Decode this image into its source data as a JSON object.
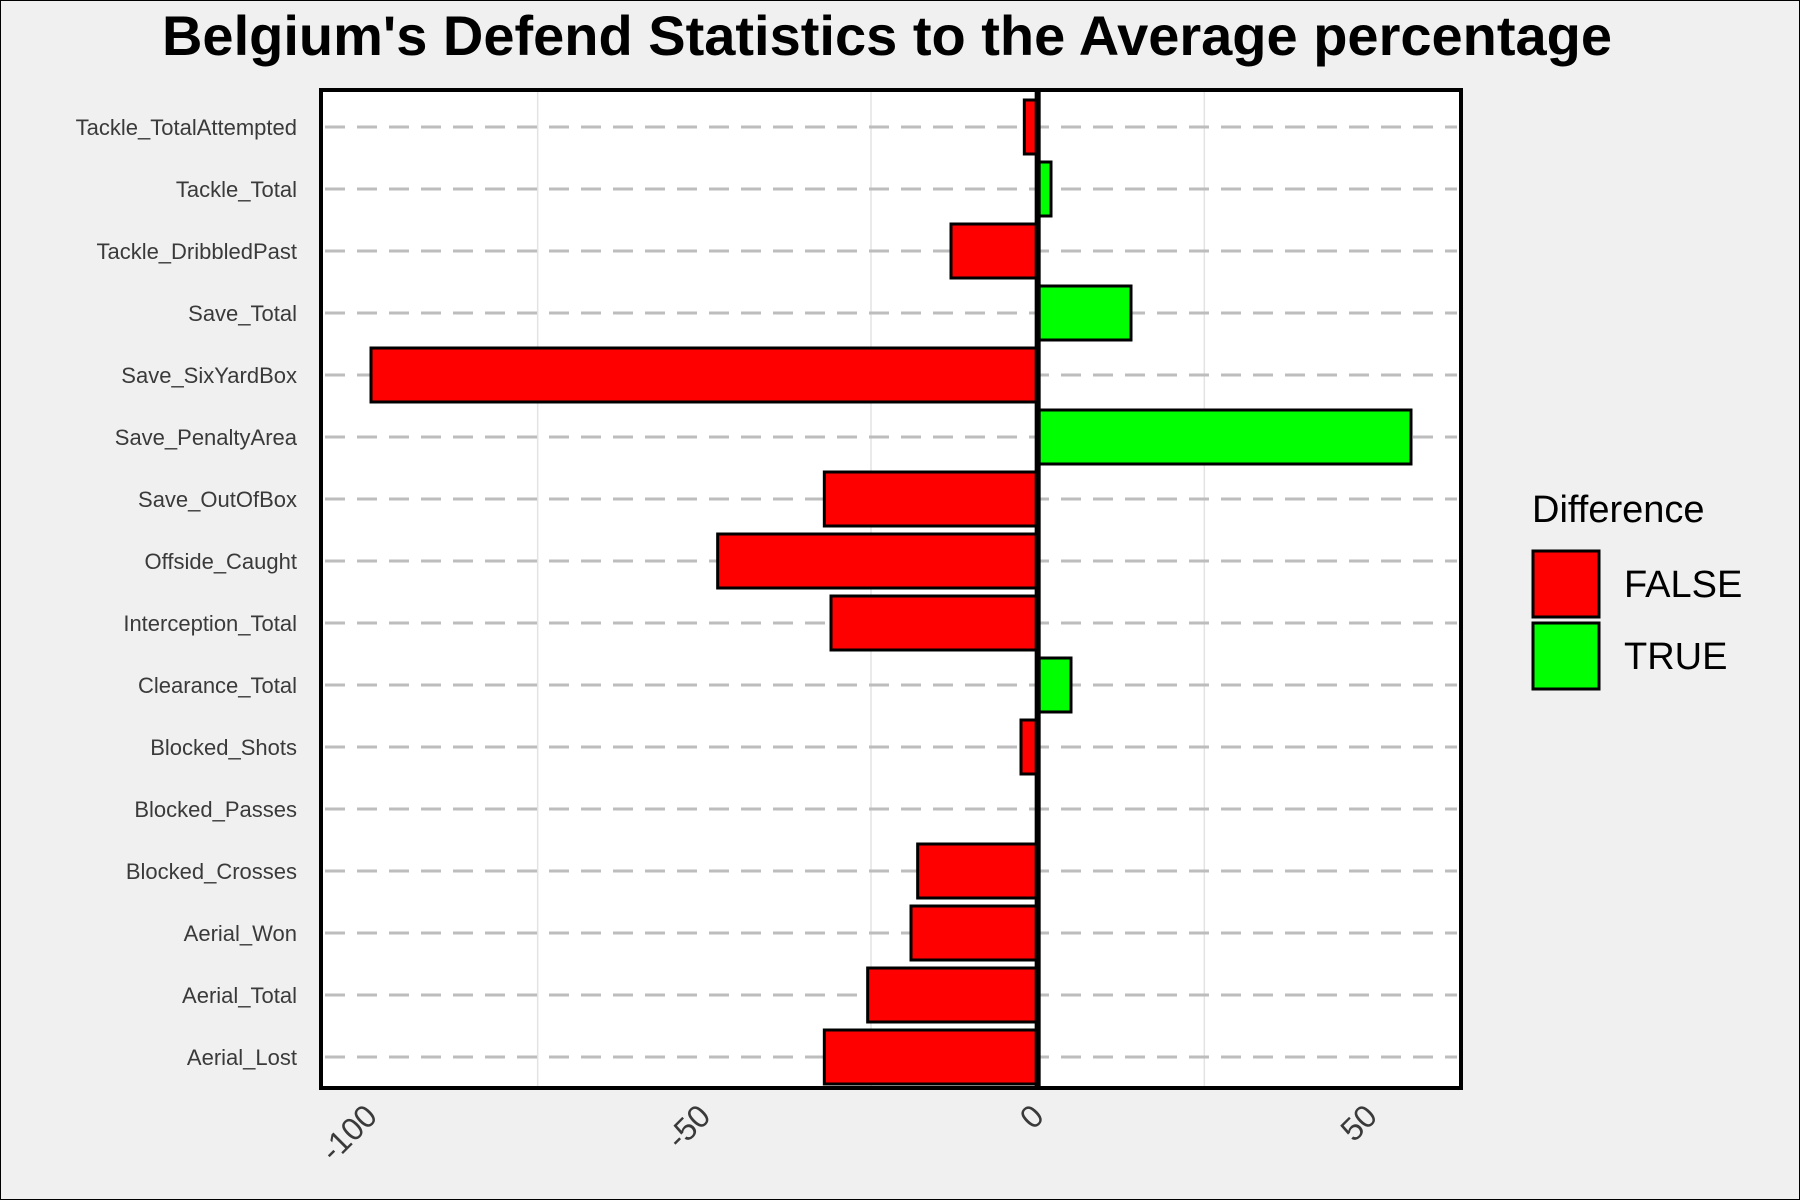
{
  "chart_data": {
    "type": "bar",
    "orientation": "horizontal",
    "title": "Belgium's Defend Statistics to the Average percentage",
    "categories": [
      "Tackle_TotalAttempted",
      "Tackle_Total",
      "Tackle_DribbledPast",
      "Save_Total",
      "Save_SixYardBox",
      "Save_PenaltyArea",
      "Save_OutOfBox",
      "Offside_Caught",
      "Interception_Total",
      "Clearance_Total",
      "Blocked_Shots",
      "Blocked_Passes",
      "Blocked_Crosses",
      "Aerial_Won",
      "Aerial_Total",
      "Aerial_Lost"
    ],
    "values": [
      -2,
      2,
      -13,
      14,
      -100,
      56,
      -32,
      -48,
      -31,
      5,
      -2.5,
      0,
      -18,
      -19,
      -25.5,
      -32
    ],
    "xlim": [
      -107.5,
      63.5
    ],
    "xticks": [
      -100,
      -50,
      0,
      50
    ],
    "xtick_labels": [
      "-100",
      "-50",
      "0",
      "50"
    ],
    "legend": {
      "title": "Difference",
      "position": "right",
      "entries": [
        {
          "label": "FALSE",
          "color": "#ff0000"
        },
        {
          "label": "TRUE",
          "color": "#00ff00"
        }
      ]
    },
    "colors": {
      "negative": "#ff0000",
      "positive": "#00ff00",
      "outline": "#000000",
      "background": "#f0f0f0",
      "panel": "#ffffff",
      "gridline": "#bdbdbd"
    }
  }
}
